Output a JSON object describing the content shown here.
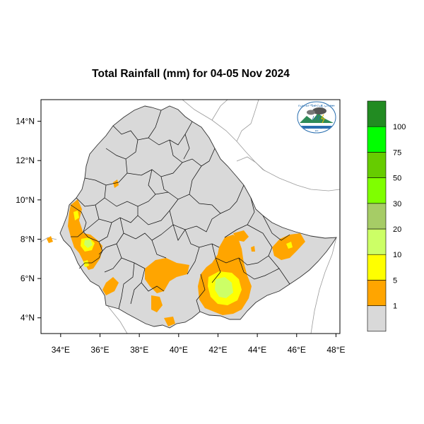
{
  "title": "Total Rainfall (mm) for 04-05 Nov 2024",
  "map": {
    "x_ticks": [
      "34°E",
      "36°E",
      "38°E",
      "40°E",
      "42°E",
      "44°E",
      "46°E",
      "48°E"
    ],
    "x_tick_values": [
      34,
      36,
      38,
      40,
      42,
      44,
      46,
      48
    ],
    "y_ticks": [
      "14°N",
      "12°N",
      "10°N",
      "8°N",
      "6°N",
      "4°N"
    ],
    "y_tick_values": [
      14,
      12,
      10,
      8,
      6,
      4
    ],
    "lon_range": [
      33,
      48.2
    ],
    "lat_range": [
      3.2,
      15.1
    ],
    "background_color": "#d9d9d9",
    "land_outside_color": "#ffffff"
  },
  "colorbar": {
    "bins": [
      {
        "color": "#d9d9d9",
        "range": "< 1"
      },
      {
        "color": "#ffa500",
        "range": "1 - 5"
      },
      {
        "color": "#ffff00",
        "range": "5 - 10"
      },
      {
        "color": "#ccff66",
        "range": "10 - 20"
      },
      {
        "color": "#a6cc66",
        "range": "20 - 30"
      },
      {
        "color": "#7fff00",
        "range": "30 - 50"
      },
      {
        "color": "#66cc00",
        "range": "50 - 75"
      },
      {
        "color": "#00ff00",
        "range": "75 - 100"
      },
      {
        "color": "#228b22",
        "range": "> 100"
      }
    ],
    "labels": [
      "1",
      "5",
      "10",
      "20",
      "30",
      "50",
      "75",
      "100"
    ]
  },
  "logo": {
    "name": "ethiopian-meteorology-institute-logo",
    "text_top": "የኢትዮጵያ ሜቲዮሮሎጂ ኢንስቲቱት",
    "text_bottom": "Ethiopian Meteorology Institute",
    "text_code": "EMI"
  }
}
